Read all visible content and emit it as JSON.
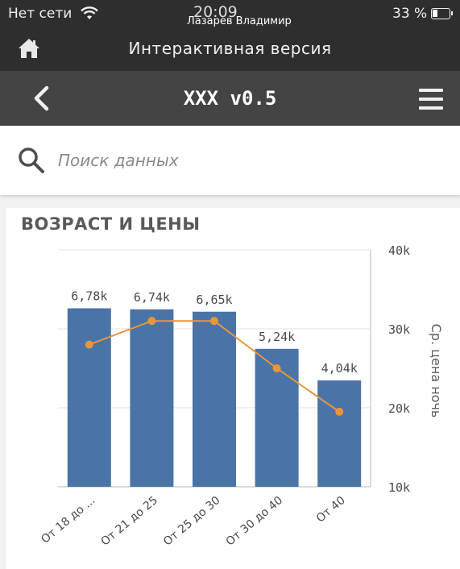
{
  "status_bar": {
    "carrier": "Нет сети",
    "time": "20:09",
    "user": "Лазарев Владимир",
    "battery": "33 %",
    "battery_level": 0.33
  },
  "top_bar": {
    "title": "Интерактивная версия",
    "home_icon": "home-icon"
  },
  "nav_bar": {
    "title": "XXX v0.5",
    "back_icon": "chevron-left-icon",
    "menu_icon": "hamburger-menu-icon"
  },
  "search": {
    "placeholder": "Поиск данных",
    "icon": "search-icon"
  },
  "panel": {
    "title": "ВОЗРАСТ И ЦЕНЫ"
  },
  "chart_data": {
    "type": "bar",
    "title": "ВОЗРАСТ И ЦЕНЫ",
    "categories": [
      "От 18 до ...",
      "От 21 до 25",
      "От 25 до 30",
      "От 30 до 40",
      "От 40"
    ],
    "series": [
      {
        "type": "bar",
        "axis": "left",
        "values": [
          6780,
          6740,
          6650,
          5240,
          4040
        ],
        "labels": [
          "6,78k",
          "6,74k",
          "6,65k",
          "5,24k",
          "4,04k"
        ]
      },
      {
        "type": "line",
        "axis": "right",
        "values": [
          28000,
          31000,
          31000,
          25000,
          19500
        ]
      }
    ],
    "y_left_range": [
      0,
      9000
    ],
    "y_right": {
      "label": "Ср. цена ночь",
      "range": [
        10000,
        40000
      ],
      "ticks": [
        10000,
        20000,
        30000,
        40000
      ],
      "tick_labels": [
        "10k",
        "20k",
        "30k",
        "40k"
      ]
    },
    "grid": true,
    "colors": {
      "bar": "#4a74a8",
      "line": "#e9963a",
      "grid": "#e3e3e3"
    }
  }
}
